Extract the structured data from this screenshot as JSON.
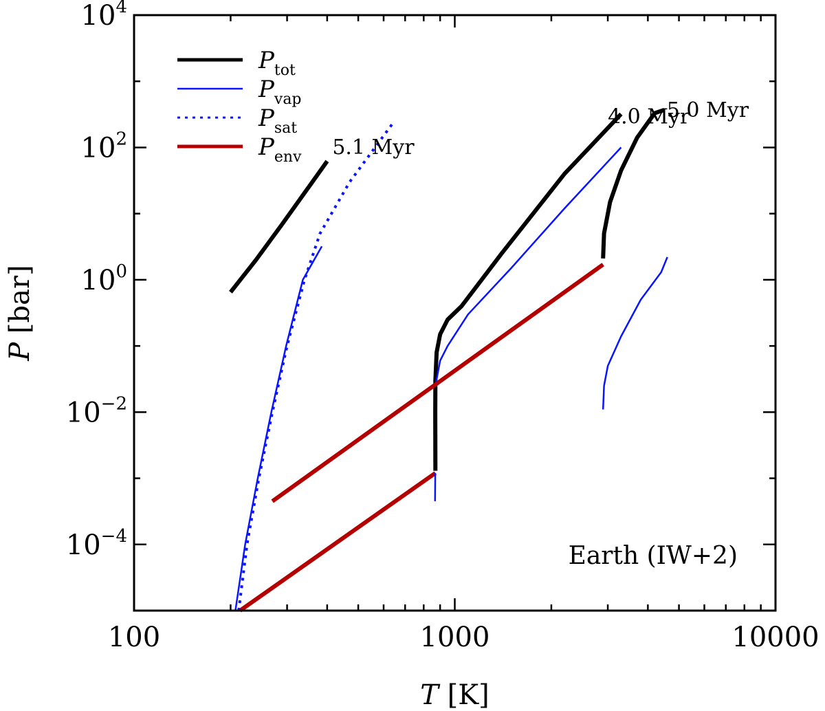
{
  "chart_data": {
    "type": "line",
    "title": "",
    "xlabel": {
      "symbol": "T",
      "unit": "[K]"
    },
    "ylabel": {
      "symbol": "P",
      "unit": "[bar]"
    },
    "x_scale": "log",
    "y_scale": "log",
    "xlim": [
      100,
      10000
    ],
    "ylim": [
      1e-05,
      10000
    ],
    "x_ticks": [
      {
        "value": 100,
        "label": "100"
      },
      {
        "value": 1000,
        "label": "1000"
      },
      {
        "value": 10000,
        "label": "10000"
      }
    ],
    "y_ticks": [
      {
        "value": 10000,
        "base": "10",
        "exp": "4"
      },
      {
        "value": 100,
        "base": "10",
        "exp": "2"
      },
      {
        "value": 1,
        "base": "10",
        "exp": "0"
      },
      {
        "value": 0.01,
        "base": "10",
        "exp": "−2"
      },
      {
        "value": 0.0001,
        "base": "10",
        "exp": "−4"
      }
    ],
    "legend_position": "top-left",
    "legend": [
      {
        "main": "P",
        "sub": "tot",
        "color": "#000000",
        "style": "solid",
        "width": 5
      },
      {
        "main": "P",
        "sub": "vap",
        "color": "#0a14ff",
        "style": "solid",
        "width": 2.5
      },
      {
        "main": "P",
        "sub": "sat",
        "color": "#0a14ff",
        "style": "dotted",
        "width": 3
      },
      {
        "main": "P",
        "sub": "env",
        "color": "#b40000",
        "style": "solid",
        "width": 5
      }
    ],
    "series": [
      {
        "name": "P_tot 5.1 Myr",
        "kind": "tot",
        "color": "#000000",
        "style": "solid",
        "width": 6,
        "points": [
          [
            200,
            0.65
          ],
          [
            240,
            2.0
          ],
          [
            290,
            7.0
          ],
          [
            350,
            25
          ],
          [
            400,
            62
          ]
        ]
      },
      {
        "name": "P_sat",
        "kind": "sat",
        "color": "#0a14ff",
        "style": "dotted",
        "width": 4,
        "points": [
          [
            212,
            1e-05
          ],
          [
            225,
            0.0001
          ],
          [
            245,
            0.001
          ],
          [
            270,
            0.01
          ],
          [
            300,
            0.1
          ],
          [
            340,
            1.0
          ],
          [
            380,
            5
          ],
          [
            470,
            30
          ],
          [
            640,
            230
          ]
        ]
      },
      {
        "name": "P_vap 5.1 Myr",
        "kind": "vap",
        "color": "#0a14ff",
        "style": "solid",
        "width": 2.5,
        "points": [
          [
            207,
            1e-05
          ],
          [
            222,
            0.0001
          ],
          [
            243,
            0.001
          ],
          [
            268,
            0.01
          ],
          [
            298,
            0.1
          ],
          [
            336,
            1.0
          ],
          [
            385,
            3.2
          ]
        ]
      },
      {
        "name": "P_env 5.1 Myr",
        "kind": "env",
        "color": "#b40000",
        "style": "solid",
        "width": 6,
        "points": [
          [
            214,
            1e-05
          ],
          [
            870,
            0.0012
          ]
        ]
      },
      {
        "name": "P_vap 5.1 Myr (deep)",
        "kind": "vap",
        "color": "#0a14ff",
        "style": "solid",
        "width": 2.5,
        "points": [
          [
            868,
            0.00045
          ],
          [
            869,
            0.0012
          ]
        ]
      },
      {
        "name": "P_tot 4.0 Myr",
        "kind": "tot",
        "color": "#000000",
        "style": "solid",
        "width": 6,
        "points": [
          [
            870,
            0.0013
          ],
          [
            869,
            0.01
          ],
          [
            870,
            0.03
          ],
          [
            878,
            0.08
          ],
          [
            900,
            0.15
          ],
          [
            950,
            0.25
          ],
          [
            1050,
            0.4
          ],
          [
            1400,
            2.5
          ],
          [
            2200,
            40
          ],
          [
            3300,
            320
          ]
        ]
      },
      {
        "name": "P_vap 4.0 Myr",
        "kind": "vap",
        "color": "#0a14ff",
        "style": "solid",
        "width": 2.5,
        "points": [
          [
            870,
            0.025
          ],
          [
            900,
            0.06
          ],
          [
            950,
            0.1
          ],
          [
            1100,
            0.3
          ],
          [
            1500,
            1.5
          ],
          [
            2200,
            12
          ],
          [
            3300,
            100
          ]
        ]
      },
      {
        "name": "P_env 4.0 Myr",
        "kind": "env",
        "color": "#b40000",
        "style": "solid",
        "width": 6,
        "points": [
          [
            270,
            0.00045
          ],
          [
            2900,
            1.7
          ]
        ]
      },
      {
        "name": "P_tot 5.0 Myr",
        "kind": "tot",
        "color": "#000000",
        "style": "solid",
        "width": 6,
        "points": [
          [
            2900,
            2.1
          ],
          [
            2920,
            5
          ],
          [
            3050,
            15
          ],
          [
            3300,
            45
          ],
          [
            3700,
            140
          ],
          [
            4200,
            330
          ],
          [
            4500,
            370
          ]
        ]
      },
      {
        "name": "P_vap 5.0 Myr",
        "kind": "vap",
        "color": "#0a14ff",
        "style": "solid",
        "width": 2.5,
        "points": [
          [
            2900,
            0.011
          ],
          [
            2920,
            0.025
          ],
          [
            3000,
            0.05
          ],
          [
            3300,
            0.14
          ],
          [
            3800,
            0.5
          ],
          [
            4400,
            1.3
          ],
          [
            4600,
            2.2
          ]
        ]
      }
    ],
    "annotations": [
      {
        "text": "5.1 Myr",
        "x": 415,
        "y": 80
      },
      {
        "text": "4.0 Myr",
        "x": 3000,
        "y": 230
      },
      {
        "text": "5.0 Myr",
        "x": 4580,
        "y": 290
      }
    ],
    "note": "Earth (IW+2)"
  }
}
